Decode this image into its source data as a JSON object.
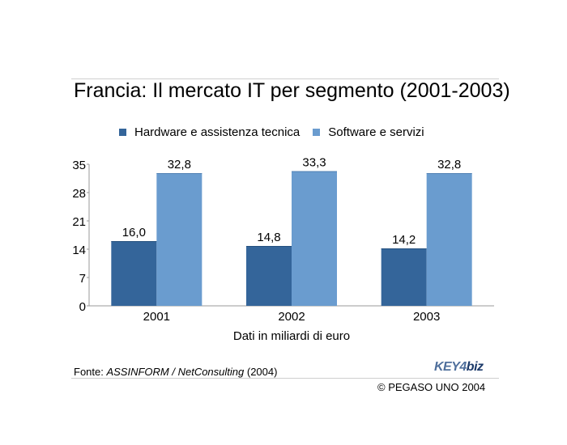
{
  "page": {
    "source_prefix": "Fonte: ",
    "source_italic": "ASSINFORM / NetConsulting",
    "source_suffix": " (2004)",
    "logo_part1": "KEY4",
    "logo_part2": "biz",
    "copyright": "© PEGASO UNO 2004"
  },
  "chart_data": {
    "type": "bar",
    "title": "Francia: Il mercato IT per segmento (2001-2003)",
    "xlabel": "Dati in miliardi di euro",
    "ylabel": "",
    "categories": [
      "2001",
      "2002",
      "2003"
    ],
    "series": [
      {
        "name": "Hardware e assistenza tecnica",
        "values": [
          16.0,
          14.8,
          14.2
        ],
        "labels": [
          "16,0",
          "14,8",
          "14,2"
        ],
        "color": "#34659a"
      },
      {
        "name": "Software e servizi",
        "values": [
          32.8,
          33.3,
          32.8
        ],
        "labels": [
          "32,8",
          "33,3",
          "32,8"
        ],
        "color": "#6a9ccf"
      }
    ],
    "yticks": [
      0,
      7,
      14,
      21,
      28,
      35
    ],
    "ylim": [
      0,
      35
    ],
    "grid": false,
    "legend": "top"
  }
}
